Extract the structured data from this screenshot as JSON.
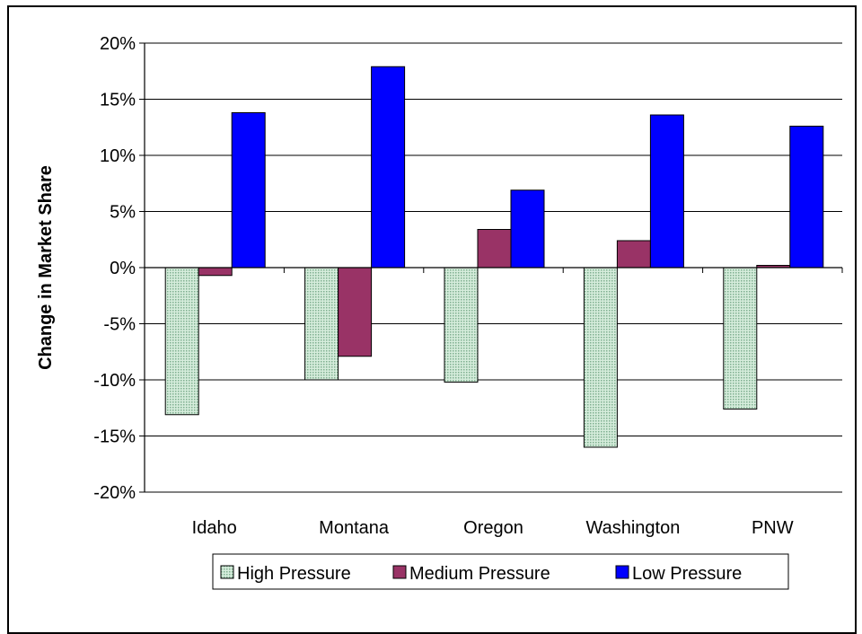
{
  "chart_data": {
    "type": "bar",
    "categories": [
      "Idaho",
      "Montana",
      "Oregon",
      "Washington",
      "PNW"
    ],
    "series": [
      {
        "name": "High Pressure",
        "values": [
          -13.1,
          -10.0,
          -10.2,
          -16.0,
          -12.6
        ],
        "color": "#b8dcc4",
        "pattern": "dotted"
      },
      {
        "name": "Medium Pressure",
        "values": [
          -0.7,
          -7.9,
          3.4,
          2.4,
          0.2
        ],
        "color": "#993366"
      },
      {
        "name": "Low Pressure",
        "values": [
          13.8,
          17.9,
          6.9,
          13.6,
          12.6
        ],
        "color": "#0000ff"
      }
    ],
    "ylabel": "Change in Market Share",
    "xlabel": "",
    "ylim": [
      -20,
      20
    ],
    "yticks": [
      "-20%",
      "-15%",
      "-10%",
      "-5%",
      "0%",
      "5%",
      "10%",
      "15%",
      "20%"
    ],
    "grid": true,
    "legend": "bottom"
  }
}
